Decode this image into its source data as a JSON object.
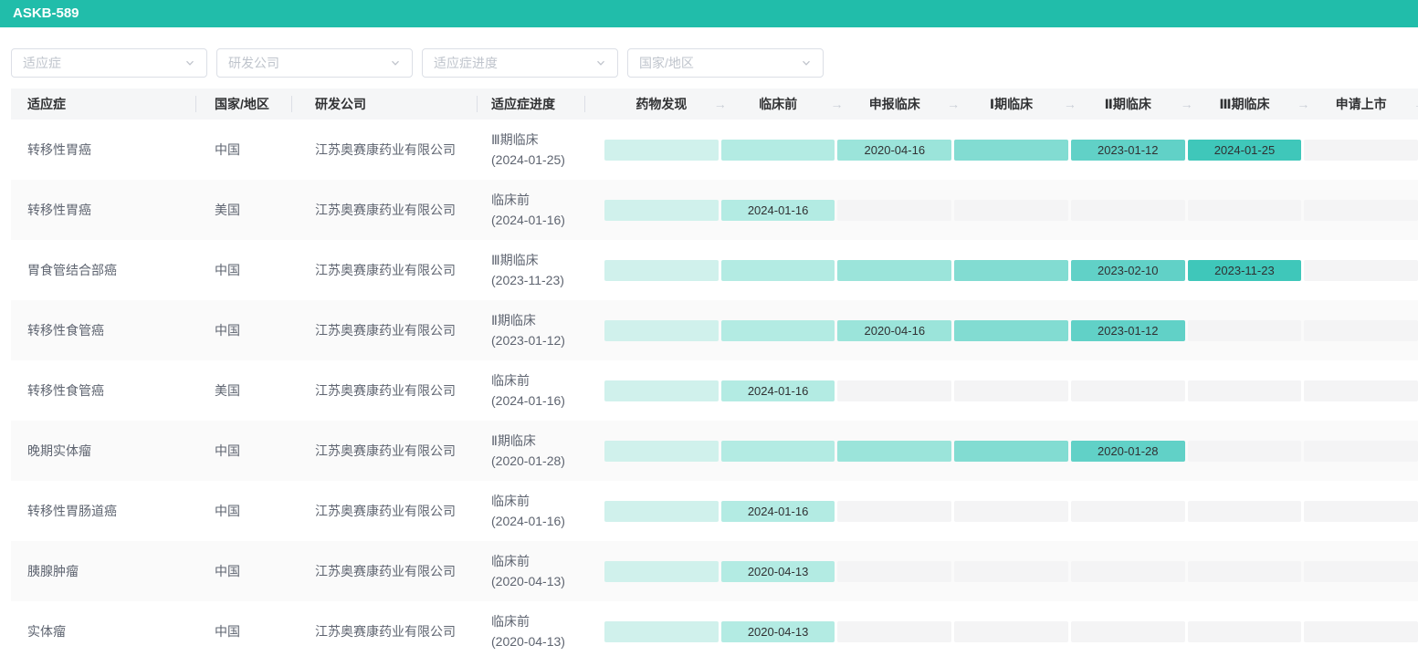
{
  "header": {
    "title": "ASKB-589",
    "bar_color": "#21bdaa"
  },
  "filters": [
    {
      "placeholder": "适应症"
    },
    {
      "placeholder": "研发公司"
    },
    {
      "placeholder": "适应症进度"
    },
    {
      "placeholder": "国家/地区"
    }
  ],
  "table": {
    "columns": [
      "适应症",
      "国家/地区",
      "研发公司",
      "适应症进度"
    ],
    "stage_columns": [
      "药物发现",
      "临床前",
      "申报临床",
      "Ⅰ期临床",
      "Ⅱ期临床",
      "Ⅲ期临床",
      "申请上市"
    ],
    "stage_arrow": "→",
    "stage_colors": [
      "#d0f1ec",
      "#b3ebe3",
      "#9be4da",
      "#82dcd2",
      "#61d1c7",
      "#3fc7ba",
      "#2abfb0"
    ],
    "empty_color": "#f4f4f5",
    "rows": [
      {
        "indication": "转移性胃癌",
        "country": "中国",
        "company": "江苏奥赛康药业有限公司",
        "progress_stage": "Ⅲ期临床",
        "progress_date": "(2024-01-25)",
        "stages": [
          {
            "filled": true,
            "date": ""
          },
          {
            "filled": true,
            "date": ""
          },
          {
            "filled": true,
            "date": "2020-04-16"
          },
          {
            "filled": true,
            "date": ""
          },
          {
            "filled": true,
            "date": "2023-01-12"
          },
          {
            "filled": true,
            "date": "2024-01-25"
          },
          {
            "filled": false,
            "date": ""
          }
        ]
      },
      {
        "indication": "转移性胃癌",
        "country": "美国",
        "company": "江苏奥赛康药业有限公司",
        "progress_stage": "临床前",
        "progress_date": "(2024-01-16)",
        "stages": [
          {
            "filled": true,
            "date": ""
          },
          {
            "filled": true,
            "date": "2024-01-16"
          },
          {
            "filled": false,
            "date": ""
          },
          {
            "filled": false,
            "date": ""
          },
          {
            "filled": false,
            "date": ""
          },
          {
            "filled": false,
            "date": ""
          },
          {
            "filled": false,
            "date": ""
          }
        ]
      },
      {
        "indication": "胃食管结合部癌",
        "country": "中国",
        "company": "江苏奥赛康药业有限公司",
        "progress_stage": "Ⅲ期临床",
        "progress_date": "(2023-11-23)",
        "stages": [
          {
            "filled": true,
            "date": ""
          },
          {
            "filled": true,
            "date": ""
          },
          {
            "filled": true,
            "date": ""
          },
          {
            "filled": true,
            "date": ""
          },
          {
            "filled": true,
            "date": "2023-02-10"
          },
          {
            "filled": true,
            "date": "2023-11-23"
          },
          {
            "filled": false,
            "date": ""
          }
        ]
      },
      {
        "indication": "转移性食管癌",
        "country": "中国",
        "company": "江苏奥赛康药业有限公司",
        "progress_stage": "Ⅱ期临床",
        "progress_date": "(2023-01-12)",
        "stages": [
          {
            "filled": true,
            "date": ""
          },
          {
            "filled": true,
            "date": ""
          },
          {
            "filled": true,
            "date": "2020-04-16"
          },
          {
            "filled": true,
            "date": ""
          },
          {
            "filled": true,
            "date": "2023-01-12"
          },
          {
            "filled": false,
            "date": ""
          },
          {
            "filled": false,
            "date": ""
          }
        ]
      },
      {
        "indication": "转移性食管癌",
        "country": "美国",
        "company": "江苏奥赛康药业有限公司",
        "progress_stage": "临床前",
        "progress_date": "(2024-01-16)",
        "stages": [
          {
            "filled": true,
            "date": ""
          },
          {
            "filled": true,
            "date": "2024-01-16"
          },
          {
            "filled": false,
            "date": ""
          },
          {
            "filled": false,
            "date": ""
          },
          {
            "filled": false,
            "date": ""
          },
          {
            "filled": false,
            "date": ""
          },
          {
            "filled": false,
            "date": ""
          }
        ]
      },
      {
        "indication": "晚期实体瘤",
        "country": "中国",
        "company": "江苏奥赛康药业有限公司",
        "progress_stage": "Ⅱ期临床",
        "progress_date": "(2020-01-28)",
        "stages": [
          {
            "filled": true,
            "date": ""
          },
          {
            "filled": true,
            "date": ""
          },
          {
            "filled": true,
            "date": ""
          },
          {
            "filled": true,
            "date": ""
          },
          {
            "filled": true,
            "date": "2020-01-28"
          },
          {
            "filled": false,
            "date": ""
          },
          {
            "filled": false,
            "date": ""
          }
        ]
      },
      {
        "indication": "转移性胃肠道癌",
        "country": "中国",
        "company": "江苏奥赛康药业有限公司",
        "progress_stage": "临床前",
        "progress_date": "(2024-01-16)",
        "stages": [
          {
            "filled": true,
            "date": ""
          },
          {
            "filled": true,
            "date": "2024-01-16"
          },
          {
            "filled": false,
            "date": ""
          },
          {
            "filled": false,
            "date": ""
          },
          {
            "filled": false,
            "date": ""
          },
          {
            "filled": false,
            "date": ""
          },
          {
            "filled": false,
            "date": ""
          }
        ]
      },
      {
        "indication": "胰腺肿瘤",
        "country": "中国",
        "company": "江苏奥赛康药业有限公司",
        "progress_stage": "临床前",
        "progress_date": "(2020-04-13)",
        "stages": [
          {
            "filled": true,
            "date": ""
          },
          {
            "filled": true,
            "date": "2020-04-13"
          },
          {
            "filled": false,
            "date": ""
          },
          {
            "filled": false,
            "date": ""
          },
          {
            "filled": false,
            "date": ""
          },
          {
            "filled": false,
            "date": ""
          },
          {
            "filled": false,
            "date": ""
          }
        ]
      },
      {
        "indication": "实体瘤",
        "country": "中国",
        "company": "江苏奥赛康药业有限公司",
        "progress_stage": "临床前",
        "progress_date": "(2020-04-13)",
        "stages": [
          {
            "filled": true,
            "date": ""
          },
          {
            "filled": true,
            "date": "2020-04-13"
          },
          {
            "filled": false,
            "date": ""
          },
          {
            "filled": false,
            "date": ""
          },
          {
            "filled": false,
            "date": ""
          },
          {
            "filled": false,
            "date": ""
          },
          {
            "filled": false,
            "date": ""
          }
        ]
      }
    ]
  }
}
